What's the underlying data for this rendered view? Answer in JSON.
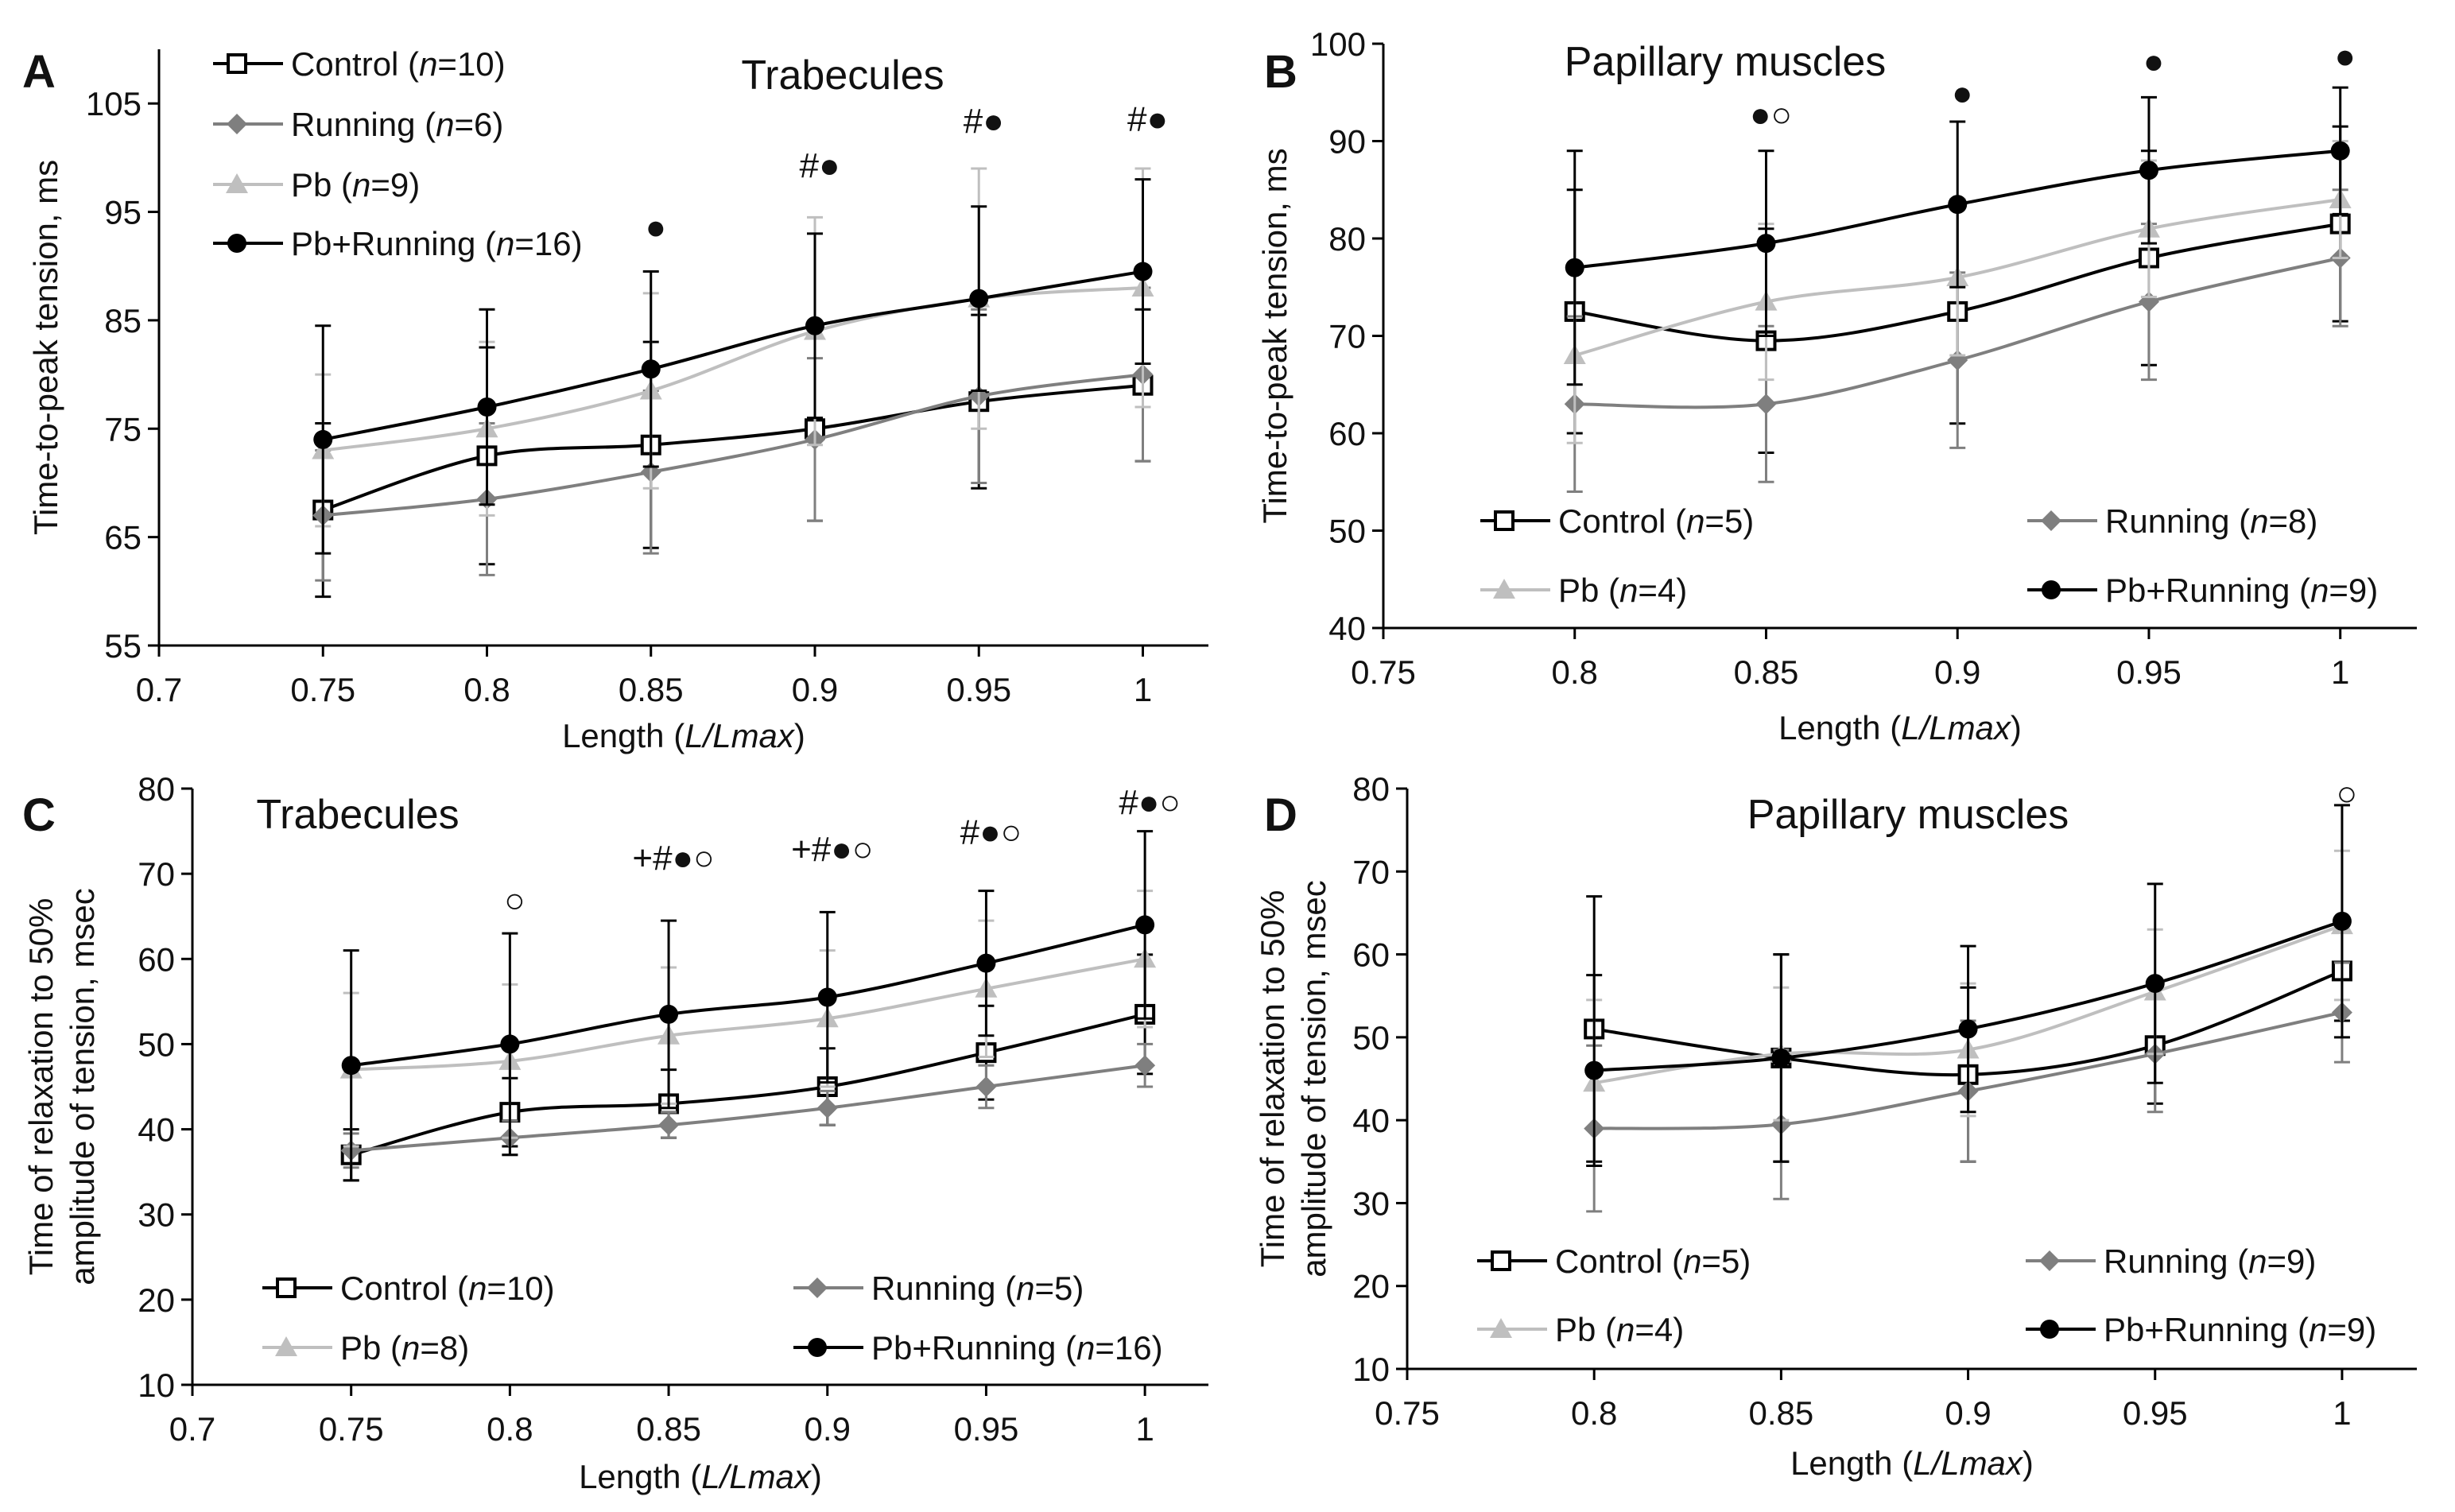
{
  "colors": {
    "control": "#000000",
    "running": "#7f7f7f",
    "pb": "#bfbfbf",
    "pb_running": "#000000",
    "axis": "#000000"
  },
  "chart_data": [
    {
      "panel": "A",
      "type": "line",
      "title": "Trabecules",
      "xlabel_prefix": "Length (",
      "xlabel_italic": "L/Lmax",
      "xlabel_suffix": ")",
      "ylabel_lines": [
        "Time-to-peak tension, ms"
      ],
      "xlim": [
        0.7,
        1.02
      ],
      "ylim": [
        55,
        110
      ],
      "xticks": [
        0.7,
        0.75,
        0.8,
        0.85,
        0.9,
        0.95,
        1
      ],
      "xtick_labels": [
        "0.7",
        "0.75",
        "0.8",
        "0.85",
        "0.9",
        "0.95",
        "1"
      ],
      "yticks": [
        55,
        65,
        75,
        85,
        95,
        105
      ],
      "ytick_labels": [
        "55",
        "65",
        "75",
        "85",
        "95",
        "105"
      ],
      "x": [
        0.75,
        0.8,
        0.85,
        0.9,
        0.95,
        1
      ],
      "series": [
        {
          "key": "control",
          "name": "Control",
          "n": "10",
          "marker": "square",
          "values": [
            67.5,
            72.5,
            73.5,
            75.0,
            77.5,
            79.0
          ],
          "errors": [
            8,
            10,
            9.5,
            8.5,
            8,
            7
          ]
        },
        {
          "key": "running",
          "name": "Running",
          "n": "6",
          "marker": "diamond",
          "values": [
            67.0,
            68.5,
            71.0,
            74.0,
            78.0,
            80.0
          ],
          "errors": [
            6,
            7,
            7.5,
            7.5,
            8,
            8
          ]
        },
        {
          "key": "pb",
          "name": "Pb",
          "n": "9",
          "marker": "triangle",
          "values": [
            73.0,
            75.0,
            78.5,
            84.0,
            87.0,
            88.0
          ],
          "errors": [
            7,
            8,
            9,
            10.5,
            12,
            11
          ]
        },
        {
          "key": "pb_running",
          "name": "Pb+Running",
          "n": "16",
          "marker": "circle",
          "values": [
            74.0,
            77.0,
            80.5,
            84.5,
            87.0,
            89.5
          ],
          "errors": [
            10.5,
            9,
            9,
            8.5,
            8.5,
            8.5
          ]
        }
      ],
      "legend_layout": "column",
      "significance": [
        {
          "x": 0.85,
          "y": 92.5,
          "label": "●"
        },
        {
          "x": 0.9,
          "y": 98.2,
          "label": "#●"
        },
        {
          "x": 0.95,
          "y": 102.3,
          "label": "#●"
        },
        {
          "x": 1,
          "y": 102.5,
          "label": "#●"
        }
      ]
    },
    {
      "panel": "B",
      "type": "line",
      "title": "Papillary muscles",
      "xlabel_prefix": "Length (",
      "xlabel_italic": "L/Lmax",
      "xlabel_suffix": ")",
      "ylabel_lines": [
        "Time-to-peak tension, ms"
      ],
      "xlim": [
        0.75,
        1.02
      ],
      "ylim": [
        40,
        100
      ],
      "xticks": [
        0.75,
        0.8,
        0.85,
        0.9,
        0.95,
        1
      ],
      "xtick_labels": [
        "0.75",
        "0.8",
        "0.85",
        "0.9",
        "0.95",
        "1"
      ],
      "yticks": [
        40,
        50,
        60,
        70,
        80,
        90,
        100
      ],
      "ytick_labels": [
        "40",
        "50",
        "60",
        "70",
        "80",
        "90",
        "100"
      ],
      "x": [
        0.8,
        0.85,
        0.9,
        0.95,
        1
      ],
      "series": [
        {
          "key": "control",
          "name": "Control",
          "n": "5",
          "marker": "square",
          "values": [
            72.5,
            69.5,
            72.5,
            78.0,
            81.5
          ],
          "errors": [
            12.5,
            11.5,
            11.5,
            11,
            10
          ]
        },
        {
          "key": "running",
          "name": "Running",
          "n": "8",
          "marker": "diamond",
          "values": [
            63.0,
            63.0,
            67.5,
            73.5,
            78.0
          ],
          "errors": [
            9,
            8,
            9,
            8,
            7
          ]
        },
        {
          "key": "pb",
          "name": "Pb",
          "n": "4",
          "marker": "triangle",
          "values": [
            68.0,
            73.5,
            76.0,
            81.0,
            84.0
          ],
          "errors": [
            9,
            8,
            8,
            7,
            6
          ]
        },
        {
          "key": "pb_running",
          "name": "Pb+Running",
          "n": "9",
          "marker": "circle",
          "values": [
            77.0,
            79.5,
            83.5,
            87.0,
            89.0
          ],
          "errors": [
            12,
            9.5,
            8.5,
            7.5,
            6.5
          ]
        }
      ],
      "legend_layout": "grid",
      "significance": [
        {
          "x": 0.85,
          "y": 91.5,
          "label": "●○"
        },
        {
          "x": 0.9,
          "y": 93.7,
          "label": "●"
        },
        {
          "x": 0.95,
          "y": 97.0,
          "label": "●"
        },
        {
          "x": 1,
          "y": 97.5,
          "label": "●"
        }
      ]
    },
    {
      "panel": "C",
      "type": "line",
      "title": "Trabecules",
      "xlabel_prefix": "Length (",
      "xlabel_italic": "L/Lmax",
      "xlabel_suffix": ")",
      "ylabel_lines": [
        "Time of relaxation to 50%",
        "amplitude  of tension, msec"
      ],
      "xlim": [
        0.7,
        1.02
      ],
      "ylim": [
        10,
        80
      ],
      "xticks": [
        0.7,
        0.75,
        0.8,
        0.85,
        0.9,
        0.95,
        1
      ],
      "xtick_labels": [
        "0.7",
        "0.75",
        "0.8",
        "0.85",
        "0.9",
        "0.95",
        "1"
      ],
      "yticks": [
        10,
        20,
        30,
        40,
        50,
        60,
        70,
        80
      ],
      "ytick_labels": [
        "10",
        "20",
        "30",
        "40",
        "50",
        "60",
        "70",
        "80"
      ],
      "x": [
        0.75,
        0.8,
        0.85,
        0.9,
        0.95,
        1
      ],
      "series": [
        {
          "key": "control",
          "name": "Control",
          "n": "10",
          "marker": "square",
          "values": [
            37.0,
            42.0,
            43.0,
            45.0,
            49.0,
            53.5
          ],
          "errors": [
            3,
            4,
            4,
            4.5,
            5.5,
            7
          ]
        },
        {
          "key": "running",
          "name": "Running",
          "n": "5",
          "marker": "diamond",
          "values": [
            37.5,
            39.0,
            40.5,
            42.5,
            45.0,
            47.5
          ],
          "errors": [
            2,
            2,
            1.5,
            2,
            2.5,
            2.5
          ]
        },
        {
          "key": "pb",
          "name": "Pb",
          "n": "8",
          "marker": "triangle",
          "values": [
            47.0,
            48.0,
            51.0,
            53.0,
            56.5,
            60.0
          ],
          "errors": [
            9,
            9,
            8,
            8,
            8,
            8
          ]
        },
        {
          "key": "pb_running",
          "name": "Pb+Running",
          "n": "16",
          "marker": "circle",
          "values": [
            47.5,
            50.0,
            53.5,
            55.5,
            59.5,
            64.0
          ],
          "errors": [
            13.5,
            13,
            11,
            10,
            8.5,
            11
          ]
        }
      ],
      "legend_layout": "grid",
      "significance": [
        {
          "x": 0.8,
          "y": 65.5,
          "label": "○"
        },
        {
          "x": 0.85,
          "y": 70.5,
          "label": "+#●○"
        },
        {
          "x": 0.9,
          "y": 71.5,
          "label": "+#●○"
        },
        {
          "x": 0.95,
          "y": 73.5,
          "label": "#●○"
        },
        {
          "x": 1,
          "y": 77.0,
          "label": "#●○"
        }
      ]
    },
    {
      "panel": "D",
      "type": "line",
      "title": "Papillary muscles",
      "xlabel_prefix": "Length (",
      "xlabel_italic": "L/Lmax",
      "xlabel_suffix": ")",
      "ylabel_lines": [
        "Time of relaxation to 50%",
        "amplitude  of tension, msec"
      ],
      "xlim": [
        0.75,
        1.02
      ],
      "ylim": [
        10,
        80
      ],
      "xticks": [
        0.75,
        0.8,
        0.85,
        0.9,
        0.95,
        1
      ],
      "xtick_labels": [
        "0.75",
        "0.8",
        "0.85",
        "0.9",
        "0.95",
        "1"
      ],
      "yticks": [
        10,
        20,
        30,
        40,
        50,
        60,
        70,
        80
      ],
      "ytick_labels": [
        "10",
        "20",
        "30",
        "40",
        "50",
        "60",
        "70",
        "80"
      ],
      "x": [
        0.8,
        0.85,
        0.9,
        0.95,
        1
      ],
      "series": [
        {
          "key": "control",
          "name": "Control",
          "n": "5",
          "marker": "square",
          "values": [
            51.0,
            47.5,
            45.5,
            49.0,
            58.0
          ],
          "errors": [
            16,
            12.5,
            10.5,
            7,
            6
          ]
        },
        {
          "key": "running",
          "name": "Running",
          "n": "9",
          "marker": "diamond",
          "values": [
            39.0,
            39.5,
            43.5,
            48.0,
            53.0
          ],
          "errors": [
            10,
            9,
            8.5,
            7,
            6
          ]
        },
        {
          "key": "pb",
          "name": "Pb",
          "n": "4",
          "marker": "triangle",
          "values": [
            44.5,
            48.0,
            48.5,
            55.5,
            63.5
          ],
          "errors": [
            10,
            8,
            8,
            7.5,
            9
          ]
        },
        {
          "key": "pb_running",
          "name": "Pb+Running",
          "n": "9",
          "marker": "circle",
          "values": [
            46.0,
            47.5,
            51.0,
            56.5,
            64.0
          ],
          "errors": [
            11.5,
            12.5,
            10,
            12,
            14
          ]
        }
      ],
      "legend_layout": "grid",
      "significance": [
        {
          "x": 1,
          "y": 78.0,
          "label": "○"
        }
      ]
    }
  ]
}
